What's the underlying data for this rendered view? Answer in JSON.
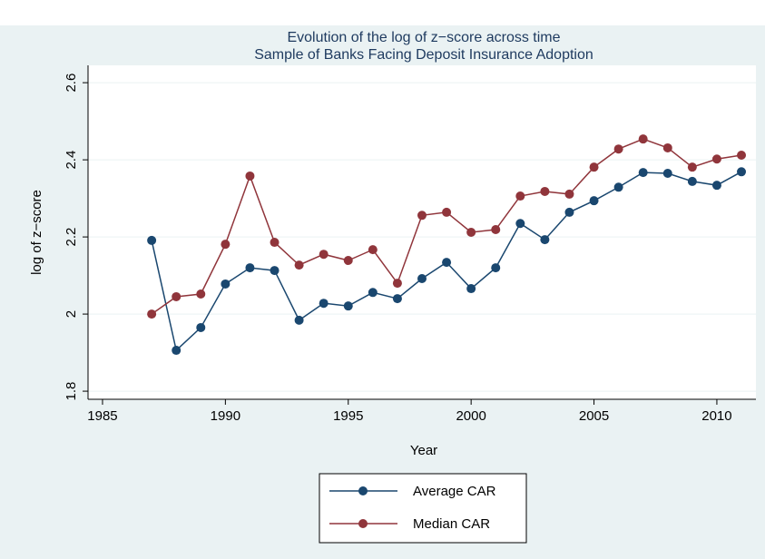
{
  "chart_data": {
    "type": "line",
    "title": "Evolution of the log of z−score across time",
    "subtitle": "Sample of Banks Facing Deposit Insurance Adoption",
    "x_label": "Year",
    "y_label": "log of z−score",
    "x": [
      1987,
      1988,
      1989,
      1990,
      1991,
      1992,
      1993,
      1994,
      1995,
      1996,
      1997,
      1998,
      1999,
      2000,
      2001,
      2002,
      2003,
      2004,
      2005,
      2006,
      2007,
      2008,
      2009,
      2010,
      2011
    ],
    "series": [
      {
        "name": "Average CAR",
        "color": "#1a476f",
        "values": [
          2.191,
          1.906,
          1.965,
          2.078,
          2.12,
          2.113,
          1.984,
          2.028,
          2.021,
          2.056,
          2.04,
          2.092,
          2.134,
          2.066,
          2.12,
          2.235,
          2.193,
          2.264,
          2.294,
          2.329,
          2.367,
          2.365,
          2.344,
          2.334,
          2.369
        ]
      },
      {
        "name": "Median CAR",
        "color": "#90353b",
        "values": [
          2.0,
          2.045,
          2.052,
          2.181,
          2.358,
          2.186,
          2.127,
          2.155,
          2.139,
          2.167,
          2.08,
          2.256,
          2.264,
          2.212,
          2.219,
          2.306,
          2.318,
          2.311,
          2.381,
          2.428,
          2.454,
          2.431,
          2.381,
          2.402,
          2.412
        ]
      }
    ],
    "xlim": [
      1984.41,
      2011.59
    ],
    "xticks": [
      1985,
      1990,
      1995,
      2000,
      2005,
      2010
    ],
    "ylim": [
      1.779,
      2.645
    ],
    "yticks": [
      1.8,
      2,
      2.2,
      2.4,
      2.6
    ],
    "grid": true,
    "legend": "bottom"
  }
}
